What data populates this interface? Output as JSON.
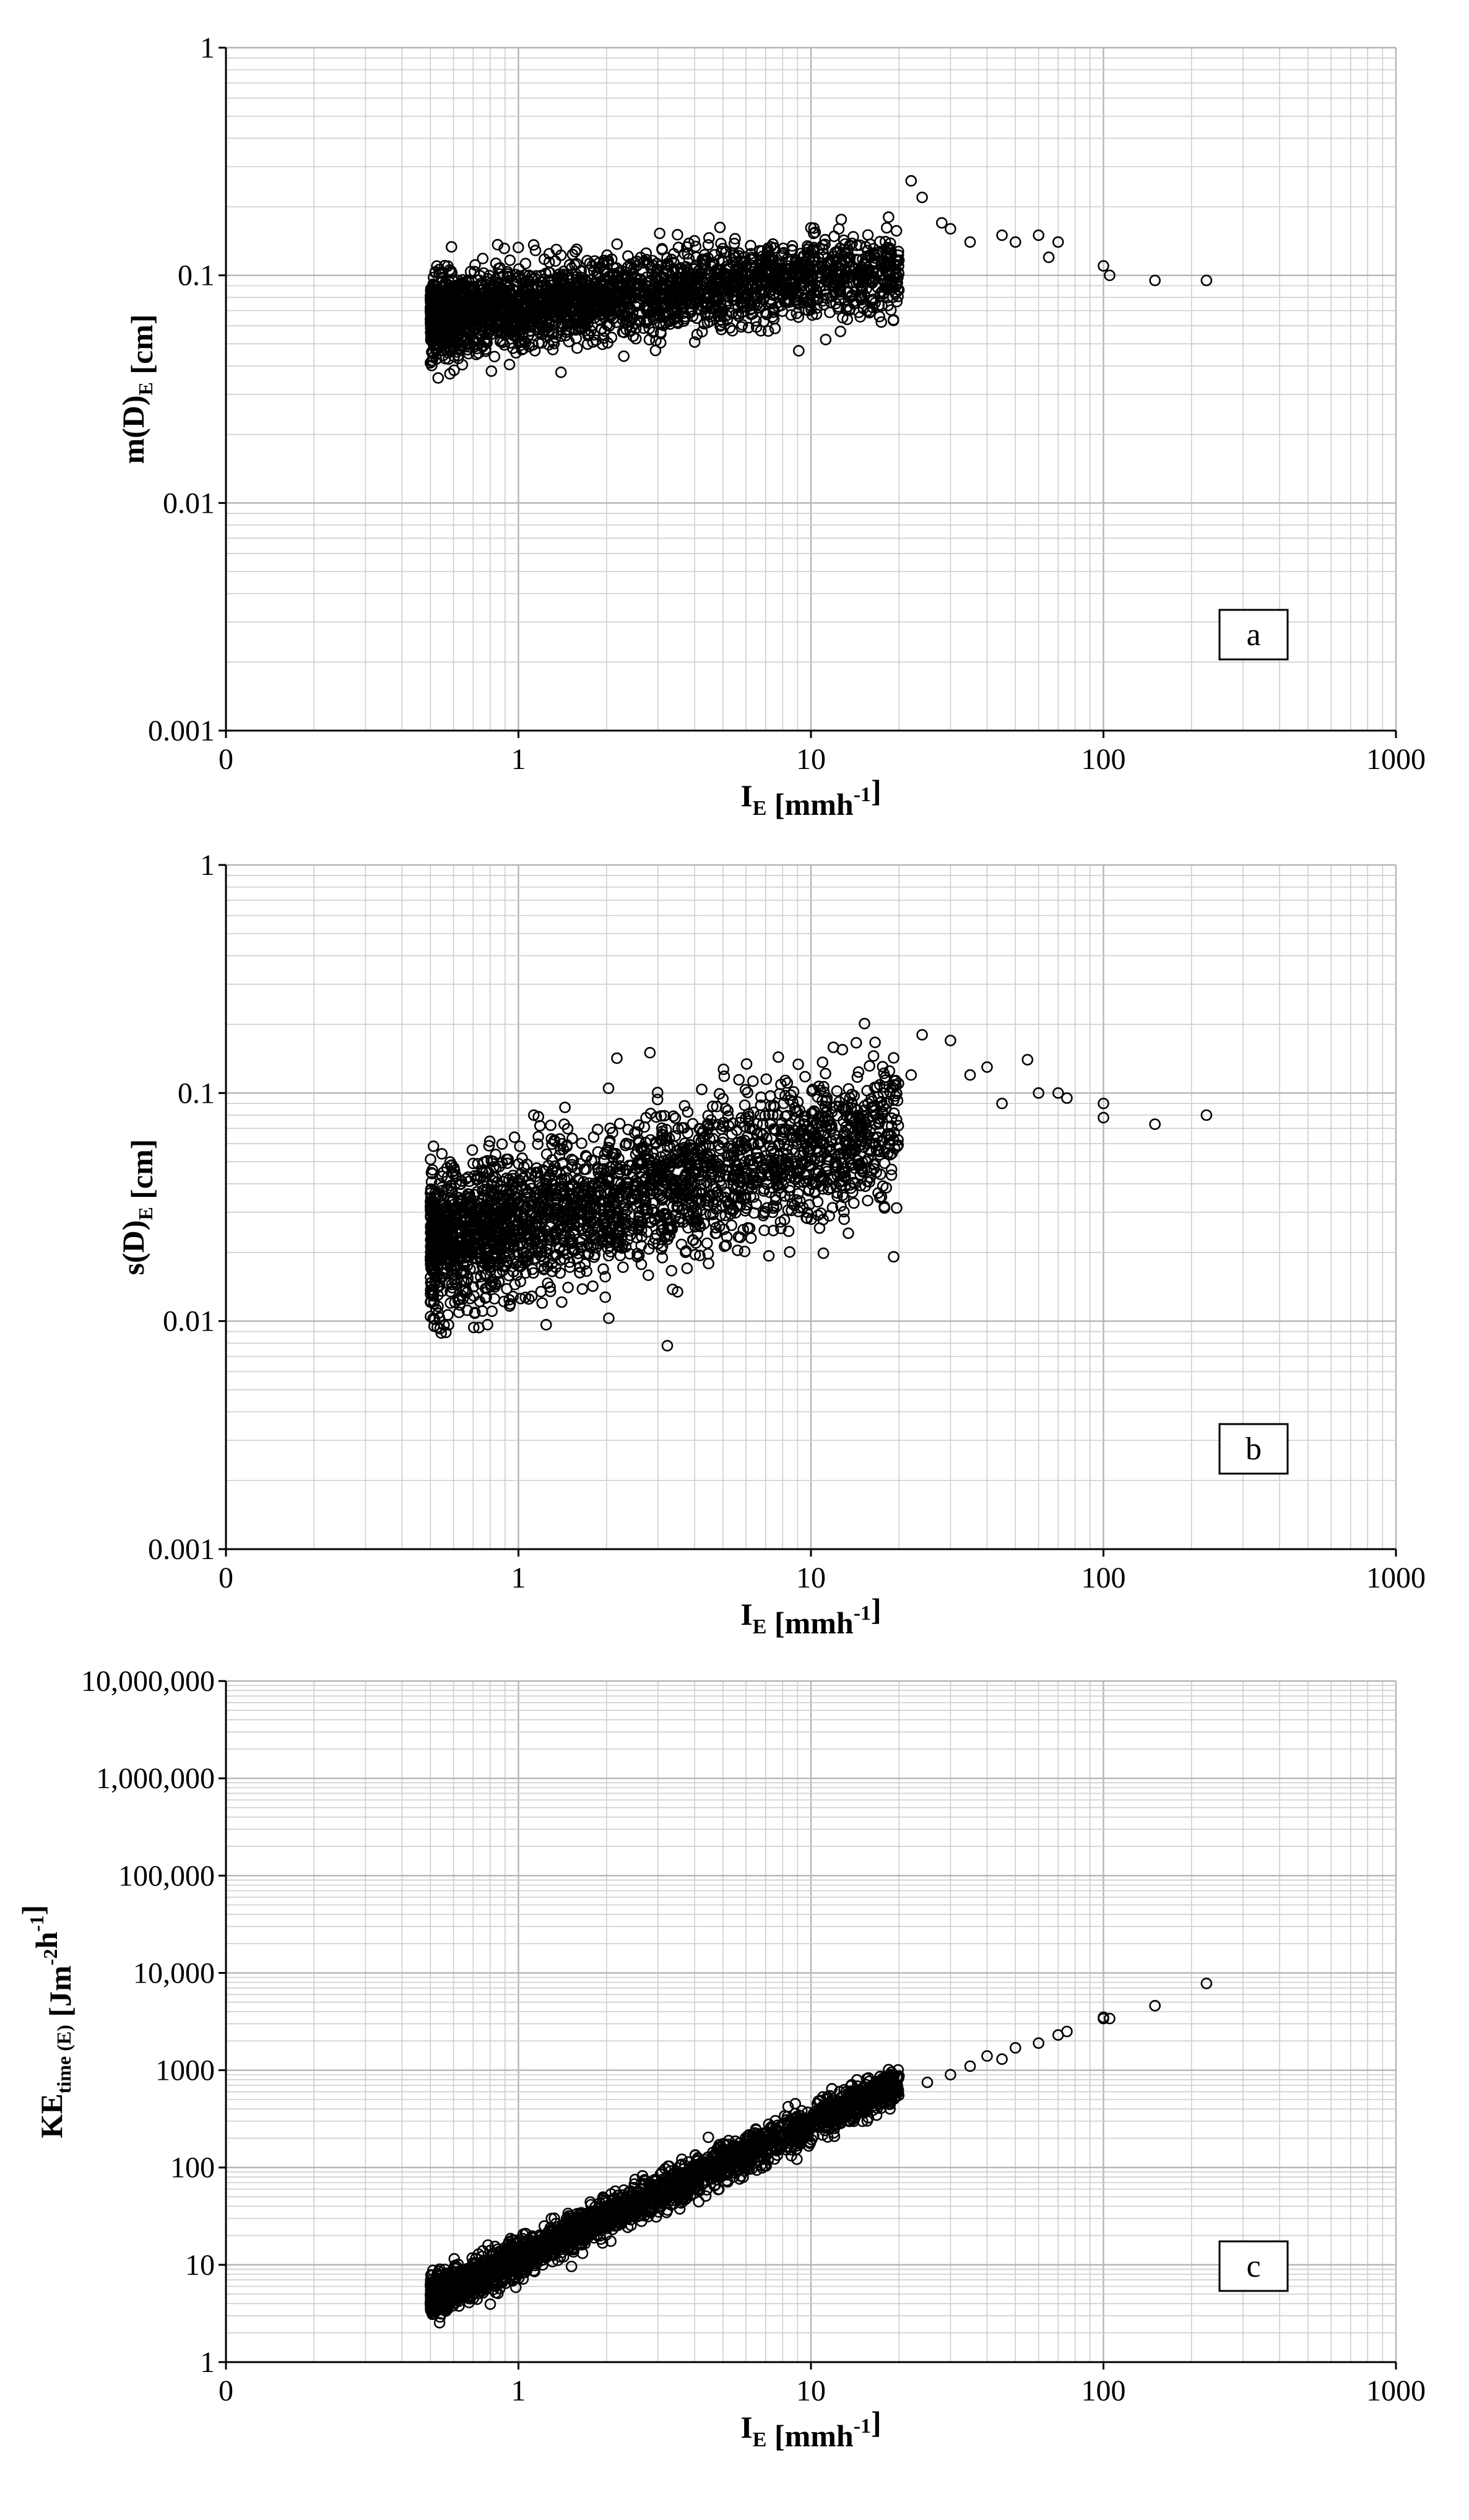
{
  "chart_data": [
    {
      "type": "scatter",
      "panel_label": "a",
      "xlabel": "I",
      "xlabel_sub": "E",
      "xlabel_unit": "[mmh",
      "xlabel_unit_sup": "-1",
      "xlabel_unit_end": "]",
      "ylabel": "m(D)",
      "ylabel_sub": "E",
      "ylabel_unit": "[cm]",
      "x_scale": "log",
      "y_scale": "log",
      "xlim": [
        0.1,
        1000
      ],
      "ylim": [
        0.001,
        1
      ],
      "x_tick_labels": [
        "0",
        "1",
        "10",
        "100",
        "1000"
      ],
      "y_tick_labels": [
        "0.001",
        "0.01",
        "0.1",
        "1"
      ],
      "grid": true,
      "cloud": {
        "x_min": 0.5,
        "x_max": 20,
        "y_at_xmin": 0.066,
        "slope": 0.13,
        "spread": 0.18
      },
      "outliers": [
        [
          22,
          0.26
        ],
        [
          24,
          0.22
        ],
        [
          28,
          0.17
        ],
        [
          30,
          0.16
        ],
        [
          35,
          0.14
        ],
        [
          45,
          0.15
        ],
        [
          50,
          0.14
        ],
        [
          60,
          0.15
        ],
        [
          65,
          0.12
        ],
        [
          70,
          0.14
        ],
        [
          100,
          0.11
        ],
        [
          105,
          0.1
        ],
        [
          150,
          0.095
        ],
        [
          225,
          0.095
        ]
      ]
    },
    {
      "type": "scatter",
      "panel_label": "b",
      "xlabel": "I",
      "xlabel_sub": "E",
      "xlabel_unit": "[mmh",
      "xlabel_unit_sup": "-1",
      "xlabel_unit_end": "]",
      "ylabel": "s(D)",
      "ylabel_sub": "E",
      "ylabel_unit": "[cm]",
      "x_scale": "log",
      "y_scale": "log",
      "xlim": [
        0.1,
        1000
      ],
      "ylim": [
        0.001,
        1
      ],
      "x_tick_labels": [
        "0",
        "1",
        "10",
        "100",
        "1000"
      ],
      "y_tick_labels": [
        "0.001",
        "0.01",
        "0.1",
        "1"
      ],
      "grid": true,
      "cloud": {
        "x_min": 0.5,
        "x_max": 20,
        "y_at_xmin": 0.022,
        "slope": 0.32,
        "spread": 0.32
      },
      "outliers": [
        [
          22,
          0.12
        ],
        [
          24,
          0.18
        ],
        [
          30,
          0.17
        ],
        [
          35,
          0.12
        ],
        [
          40,
          0.13
        ],
        [
          45,
          0.09
        ],
        [
          55,
          0.14
        ],
        [
          60,
          0.1
        ],
        [
          70,
          0.1
        ],
        [
          75,
          0.095
        ],
        [
          100,
          0.09
        ],
        [
          100,
          0.078
        ],
        [
          150,
          0.073
        ],
        [
          225,
          0.08
        ]
      ]
    },
    {
      "type": "scatter",
      "panel_label": "c",
      "xlabel": "I",
      "xlabel_sub": "E",
      "xlabel_unit": "[mmh",
      "xlabel_unit_sup": "-1",
      "xlabel_unit_end": "]",
      "ylabel": "KE",
      "ylabel_sub": "time (E)",
      "ylabel_unit": "[Jm",
      "ylabel_unit_sup": "-2",
      "ylabel_unit_mid": "h",
      "ylabel_unit_sup2": "-1",
      "ylabel_unit_end": "]",
      "x_scale": "log",
      "y_scale": "log",
      "xlim": [
        0.1,
        1000
      ],
      "ylim": [
        1,
        10000000
      ],
      "x_tick_labels": [
        "0",
        "1",
        "10",
        "100",
        "1000"
      ],
      "y_tick_labels": [
        "1",
        "10",
        "100",
        "1000",
        "10,000",
        "100,000",
        "1,000,000",
        "10,000,000"
      ],
      "grid": true,
      "cloud": {
        "x_min": 0.5,
        "x_max": 20,
        "y_at_xmin": 4.5,
        "slope": 1.38,
        "spread": 0.2
      },
      "outliers": [
        [
          25,
          750
        ],
        [
          30,
          900
        ],
        [
          35,
          1100
        ],
        [
          40,
          1400
        ],
        [
          45,
          1300
        ],
        [
          50,
          1700
        ],
        [
          60,
          1900
        ],
        [
          70,
          2300
        ],
        [
          75,
          2500
        ],
        [
          100,
          3400
        ],
        [
          100,
          3500
        ],
        [
          105,
          3400
        ],
        [
          150,
          4600
        ],
        [
          225,
          7800
        ]
      ]
    }
  ]
}
